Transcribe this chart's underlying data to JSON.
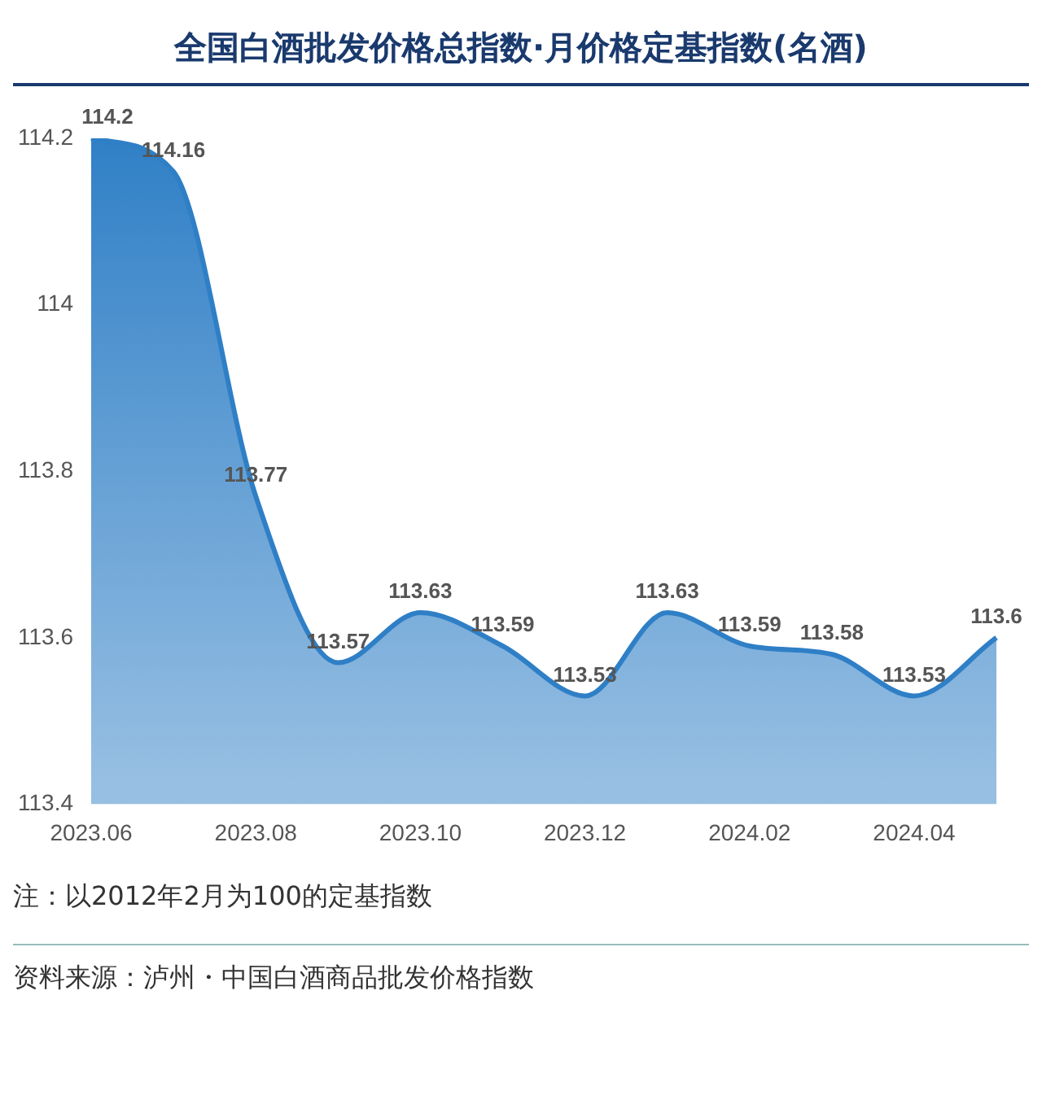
{
  "chart_data": {
    "type": "area",
    "title": "全国白酒批发价格总指数·月价格定基指数(名酒)",
    "categories": [
      "2023.06",
      null,
      "2023.08",
      null,
      "2023.10",
      null,
      "2023.12",
      null,
      "2024.02",
      null,
      "2024.04",
      null
    ],
    "values": [
      114.2,
      114.16,
      113.77,
      113.57,
      113.63,
      113.59,
      113.53,
      113.63,
      113.59,
      113.58,
      113.53,
      113.6
    ],
    "color": "#2f7fc6",
    "ylim": [
      113.4,
      114.2
    ],
    "yticks": [
      113.4,
      113.6,
      113.8,
      114,
      114.2
    ],
    "grid": false,
    "data_labels": true,
    "annotations": [
      "注：以2012年2月为100的定基指数",
      "资料来源：泸州・中国白酒商品批发价格指数"
    ]
  }
}
